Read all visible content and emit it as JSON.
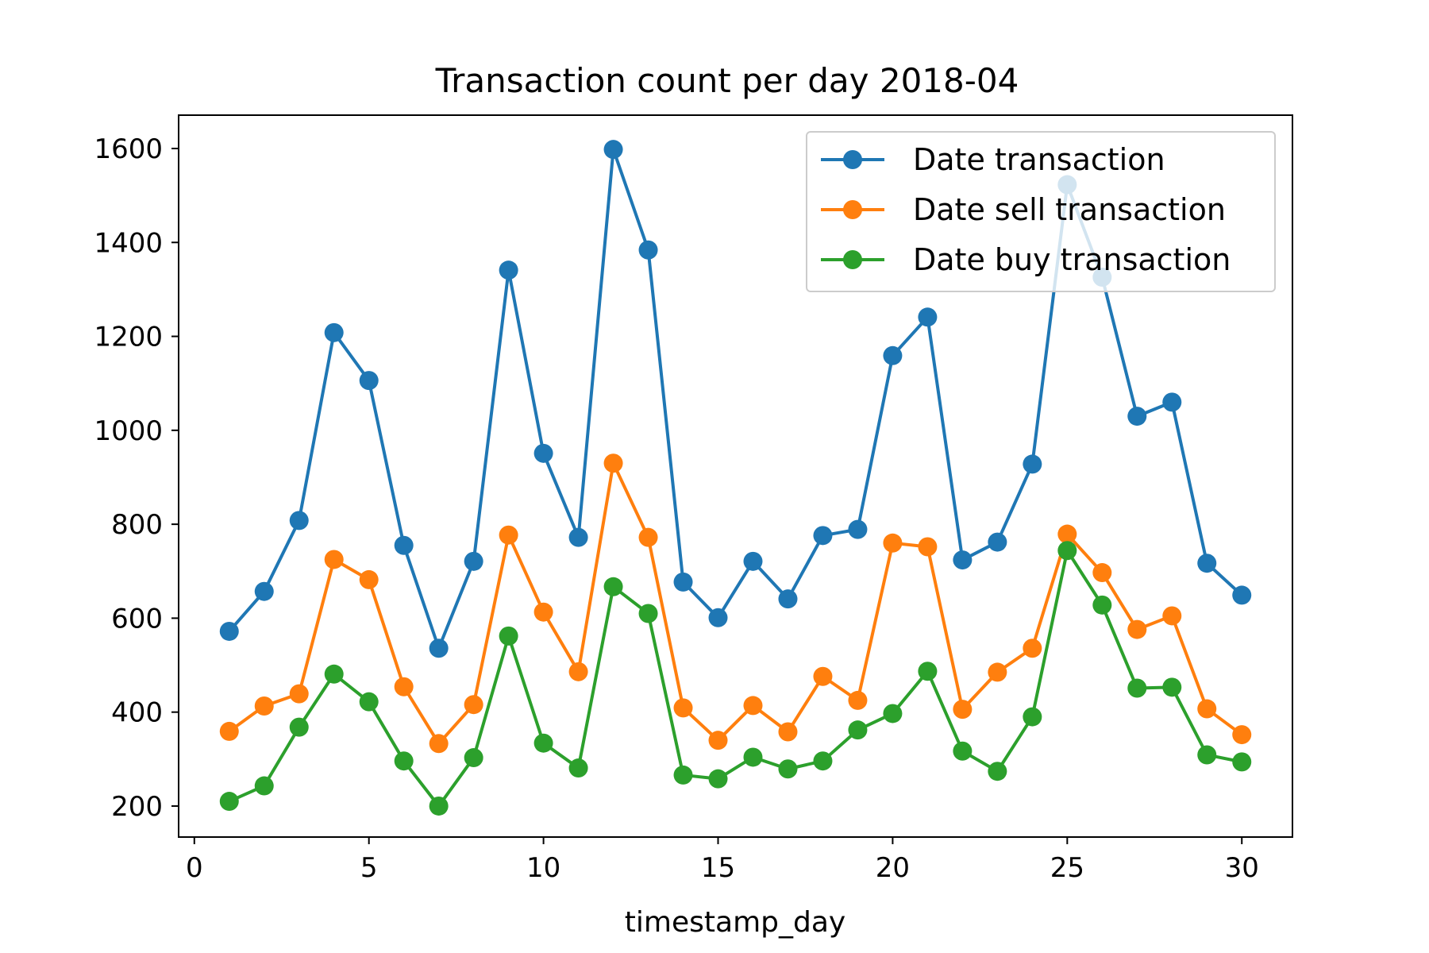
{
  "chart_data": {
    "type": "line",
    "title": "Transaction count per day 2018-04",
    "xlabel": "timestamp_day",
    "ylabel": "",
    "xlim": [
      -0.45,
      31.45
    ],
    "ylim": [
      134,
      1671
    ],
    "xticks": [
      0,
      5,
      10,
      15,
      20,
      25,
      30
    ],
    "yticks": [
      200,
      400,
      600,
      800,
      1000,
      1200,
      1400,
      1600
    ],
    "grid": false,
    "legend_position": "top-right",
    "x": [
      1,
      2,
      3,
      4,
      5,
      6,
      7,
      8,
      9,
      10,
      11,
      12,
      13,
      14,
      15,
      16,
      17,
      18,
      19,
      20,
      21,
      22,
      23,
      24,
      25,
      26,
      27,
      28,
      29,
      30
    ],
    "series": [
      {
        "name": "Date transaction",
        "color": "#1f77b4",
        "values": [
          572,
          657,
          808,
          1208,
          1106,
          755,
          536,
          721,
          1341,
          951,
          772,
          1598,
          1384,
          677,
          601,
          721,
          641,
          776,
          789,
          1159,
          1241,
          724,
          762,
          928,
          1523,
          1326,
          1030,
          1060,
          717,
          649
        ]
      },
      {
        "name": "Date sell transaction",
        "color": "#ff7f0e",
        "values": [
          359,
          413,
          439,
          725,
          682,
          454,
          333,
          416,
          777,
          613,
          486,
          930,
          772,
          409,
          340,
          414,
          358,
          476,
          425,
          760,
          752,
          406,
          485,
          536,
          779,
          697,
          576,
          605,
          407,
          352
        ]
      },
      {
        "name": "Date buy transaction",
        "color": "#2ca02c",
        "values": [
          210,
          243,
          368,
          481,
          422,
          296,
          200,
          303,
          562,
          334,
          281,
          667,
          610,
          266,
          258,
          304,
          279,
          296,
          362,
          397,
          487,
          317,
          274,
          390,
          744,
          628,
          451,
          453,
          309,
          294
        ]
      }
    ]
  }
}
